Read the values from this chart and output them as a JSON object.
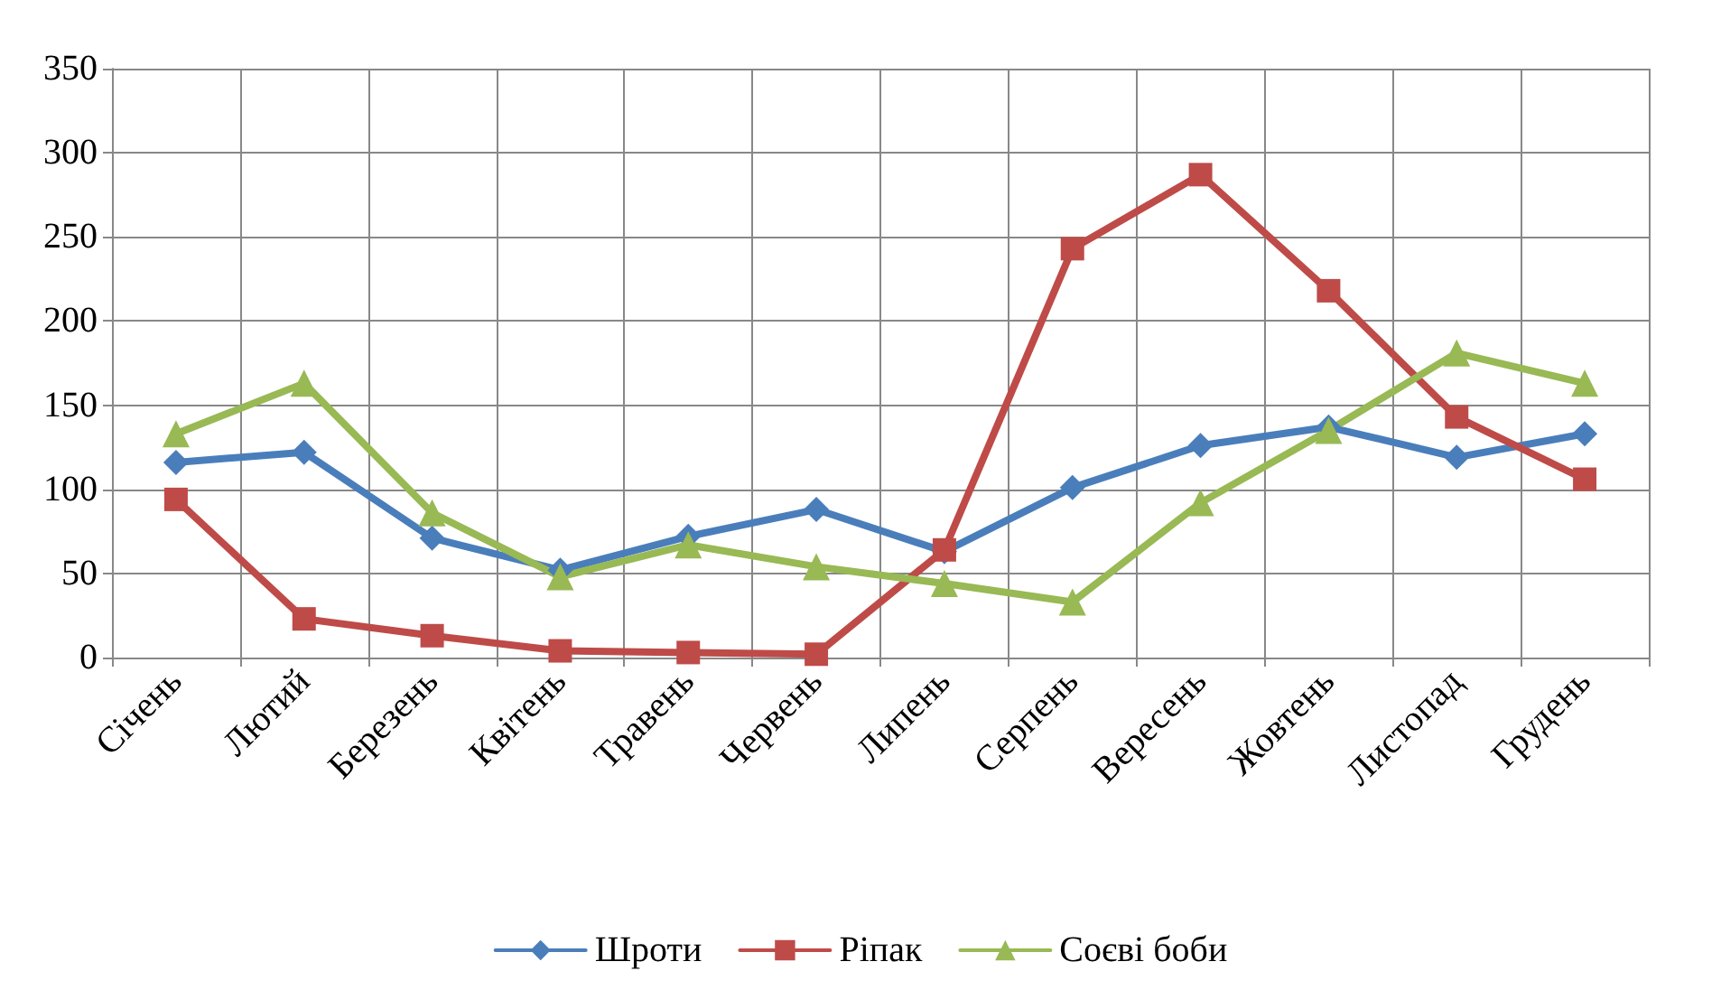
{
  "chart_data": {
    "type": "line",
    "categories": [
      "Січень",
      "Лютий",
      "Березень",
      "Квітень",
      "Травень",
      "Червень",
      "Липень",
      "Серпень",
      "Вересень",
      "Жовтень",
      "Листопад",
      "Грудень"
    ],
    "series": [
      {
        "name": "Шроти",
        "color": "#4a7ebb",
        "marker": "diamond",
        "values": [
          116,
          122,
          71,
          52,
          72,
          88,
          63,
          101,
          126,
          137,
          119,
          133
        ]
      },
      {
        "name": "Ріпак",
        "color": "#be4b48",
        "marker": "square",
        "values": [
          94,
          23,
          13,
          4,
          3,
          2,
          64,
          243,
          287,
          218,
          143,
          106
        ]
      },
      {
        "name": "Соєві боби",
        "color": "#98b954",
        "marker": "triangle",
        "values": [
          133,
          163,
          86,
          48,
          67,
          54,
          44,
          33,
          92,
          135,
          181,
          163
        ]
      }
    ],
    "ylim": [
      0,
      350
    ],
    "yticks": [
      0,
      50,
      100,
      150,
      200,
      250,
      300,
      350
    ],
    "grid": true,
    "legend": "bottom",
    "line_style": "solid"
  }
}
